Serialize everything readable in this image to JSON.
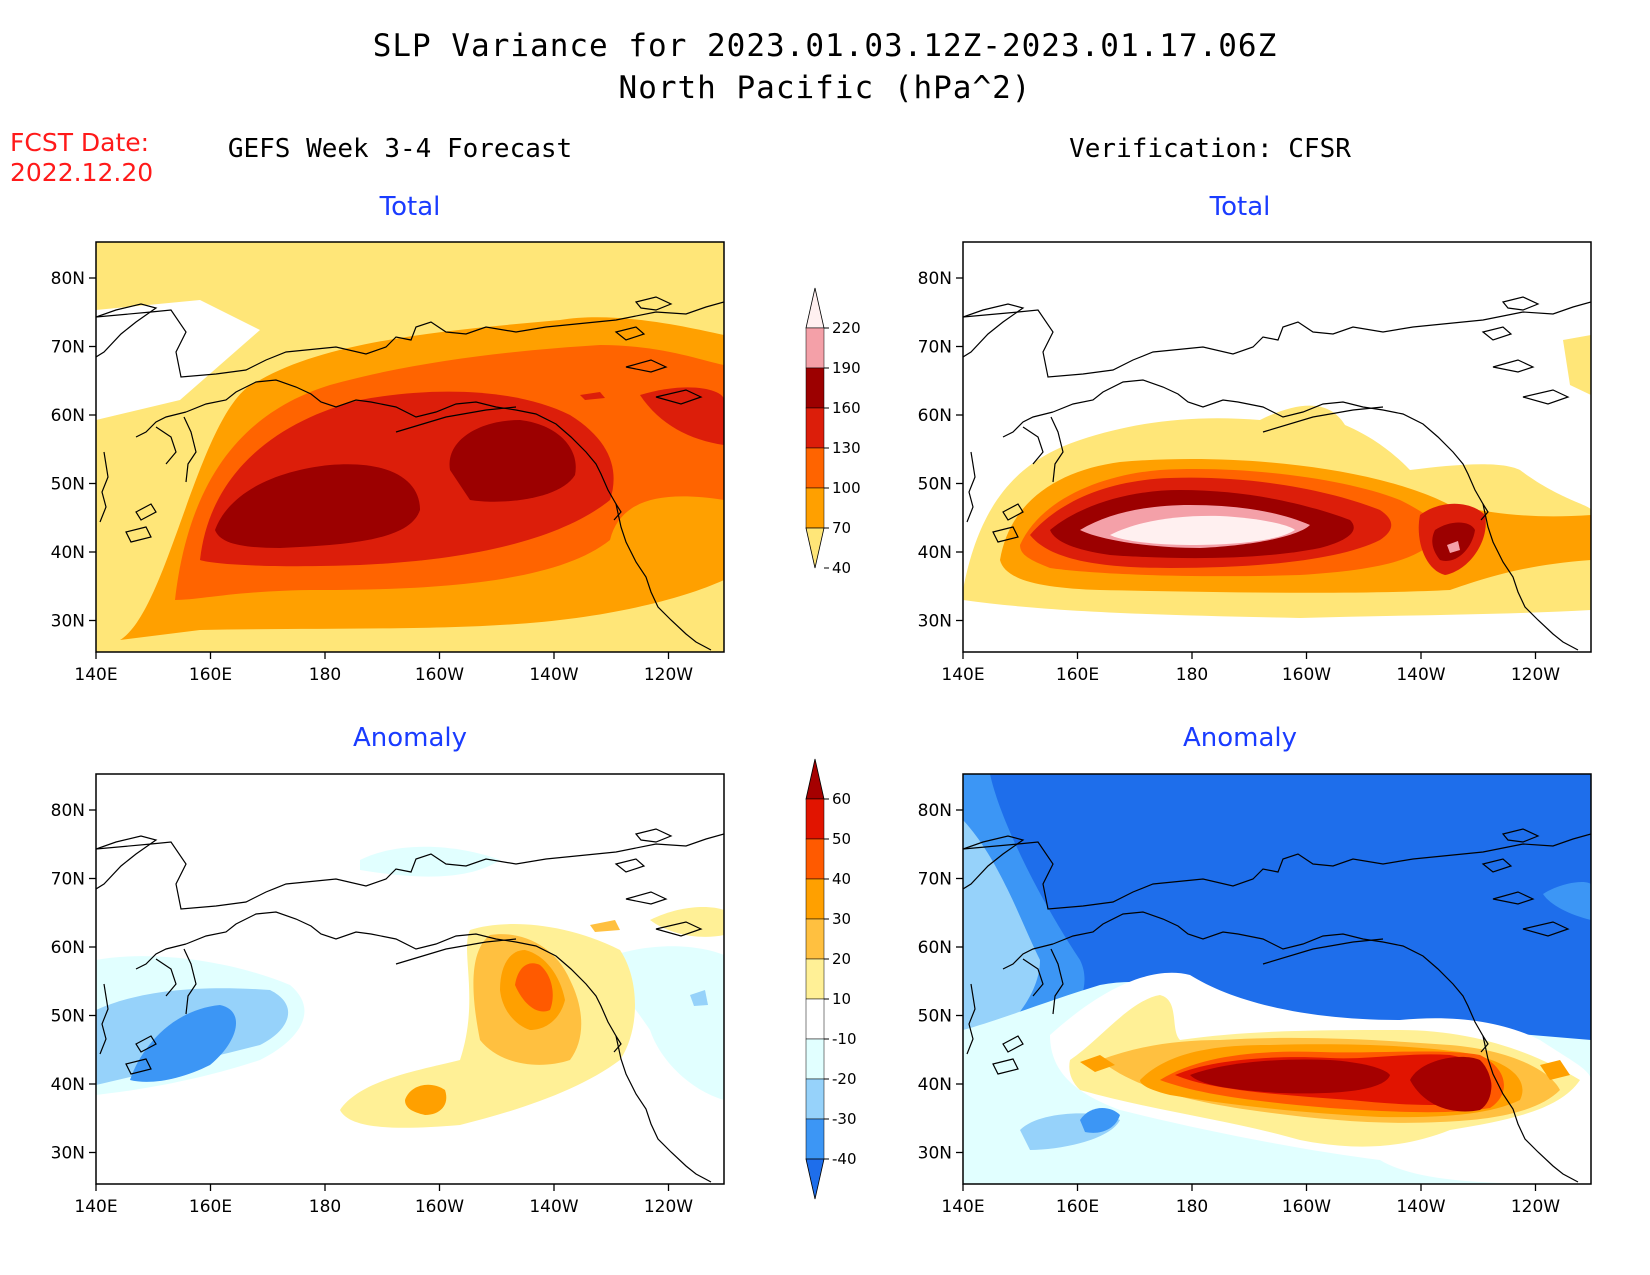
{
  "header": {
    "title_line1": "SLP Variance for 2023.01.03.12Z-2023.01.17.06Z",
    "title_line2": "North Pacific (hPa^2)",
    "fcst_label": "FCST Date:",
    "fcst_date": "2022.12.20"
  },
  "columns": {
    "left": "GEFS Week 3-4 Forecast",
    "right": "Verification: CFSR"
  },
  "panels": {
    "total": "Total",
    "anomaly": "Anomaly"
  },
  "axes": {
    "lon_ticks": [
      "140E",
      "160E",
      "180",
      "160W",
      "140W",
      "120W"
    ],
    "lat_ticks": [
      "80N",
      "70N",
      "60N",
      "50N",
      "40N",
      "30N"
    ]
  },
  "colorbar_total": {
    "levels": [
      "220",
      "190",
      "160",
      "130",
      "100",
      "70",
      "40"
    ],
    "colors": [
      "#fff0f0",
      "#f4a0a8",
      "#9c0000",
      "#dc1e0a",
      "#ff6400",
      "#ffa000",
      "#ffe678"
    ]
  },
  "colorbar_anomaly": {
    "levels": [
      "60",
      "50",
      "40",
      "30",
      "20",
      "10",
      "-10",
      "-20",
      "-30",
      "-40"
    ],
    "colors": [
      "#a50000",
      "#e11400",
      "#ff5a00",
      "#ffa000",
      "#ffc040",
      "#fff096",
      "#ffffff",
      "#e1ffff",
      "#96d2fa",
      "#3c96f5",
      "#1e6eeb"
    ]
  },
  "map_colors": {
    "land_line": "#000000",
    "frame": "#000000"
  }
}
